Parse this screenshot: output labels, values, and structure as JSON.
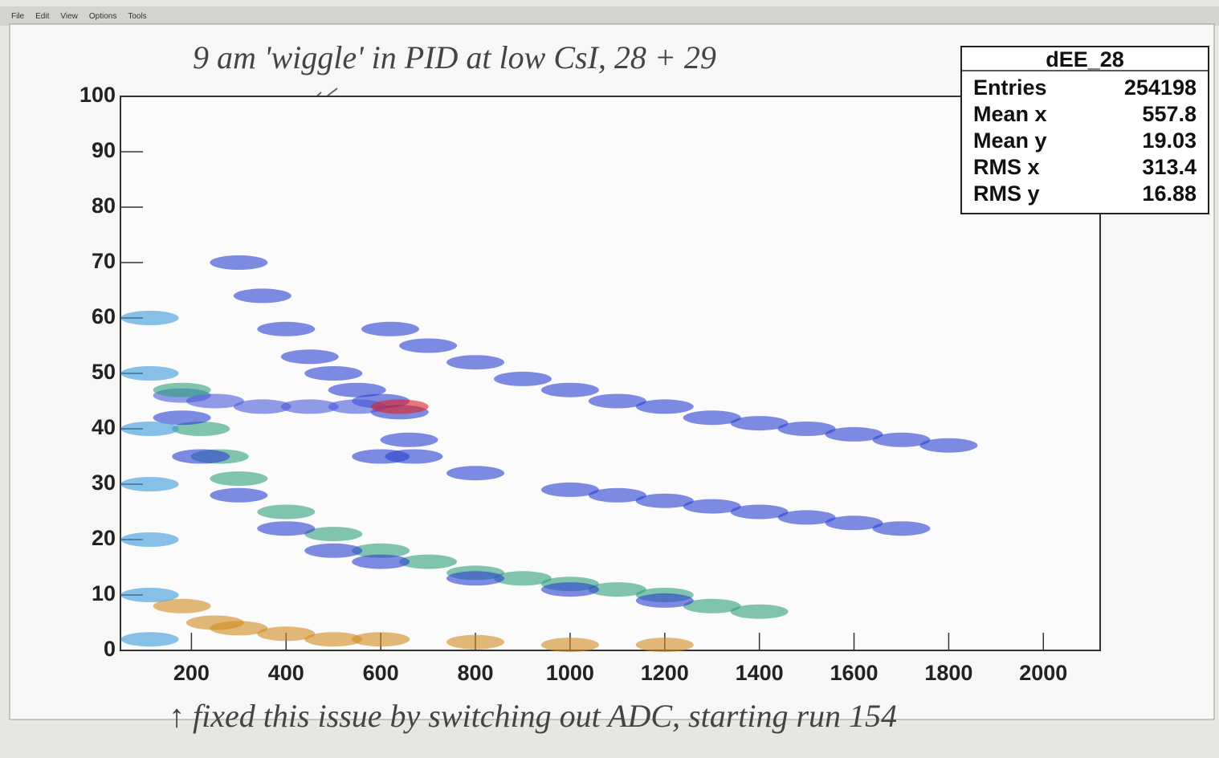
{
  "menu": [
    "File",
    "Edit",
    "View",
    "Options",
    "Tools"
  ],
  "annotations": [
    "9 am  'wiggle'  in PID at low CsI,   28 + 29",
    "↑ fixed this issue by switching out ADC, starting run 154"
  ],
  "stats": {
    "title": "dEE_28",
    "rows": [
      {
        "label": "Entries",
        "value": 254198
      },
      {
        "label": "Mean x",
        "value": 557.8
      },
      {
        "label": "Mean y",
        "value": 19.03
      },
      {
        "label": "RMS x",
        "value": 313.4
      },
      {
        "label": "RMS y",
        "value": 16.88
      }
    ]
  },
  "chart_data": {
    "type": "hist2d",
    "xlim": [
      50,
      2120
    ],
    "ylim": [
      0,
      100
    ],
    "xticks": [
      200,
      400,
      600,
      800,
      1000,
      1200,
      1400,
      1600,
      1800,
      2000
    ],
    "yticks": [
      0,
      10,
      20,
      30,
      40,
      50,
      60,
      70,
      80,
      90,
      100
    ],
    "series": [
      {
        "color": "#2a3fd0",
        "x": [
          620,
          700,
          800,
          900,
          1000,
          1100,
          1200,
          1300,
          1400,
          1500,
          1600,
          1700,
          1800
        ],
        "y": [
          58,
          55,
          52,
          49,
          47,
          45,
          44,
          42,
          41,
          40,
          39,
          38,
          37
        ]
      },
      {
        "color": "#2a3fd0",
        "x": [
          600,
          800,
          1000,
          1100,
          1200,
          1300,
          1400,
          1500,
          1600,
          1700
        ],
        "y": [
          35,
          32,
          29,
          28,
          27,
          26,
          25,
          24,
          23,
          22
        ]
      },
      {
        "color": "#2a3fd0",
        "x": [
          300,
          350,
          400,
          450,
          500,
          550,
          600,
          640,
          660,
          670
        ],
        "y": [
          70,
          64,
          58,
          53,
          50,
          47,
          45,
          43,
          38,
          35
        ]
      },
      {
        "color": "#4a5ad8",
        "x": [
          180,
          250,
          350,
          450,
          550
        ],
        "y": [
          46,
          45,
          44,
          44,
          44
        ]
      },
      {
        "color": "#2fa07a",
        "x": [
          180,
          220,
          260,
          300,
          400,
          500,
          600,
          700,
          800,
          900,
          1000,
          1100,
          1200,
          1300,
          1400
        ],
        "y": [
          47,
          40,
          35,
          31,
          25,
          21,
          18,
          16,
          14,
          13,
          12,
          11,
          10,
          8,
          7
        ]
      },
      {
        "color": "#2a3fd0",
        "x": [
          180,
          220,
          300,
          400,
          500,
          600,
          800,
          1000,
          1200
        ],
        "y": [
          42,
          35,
          28,
          22,
          18,
          16,
          13,
          11,
          9
        ]
      },
      {
        "color": "#d08a20",
        "x": [
          180,
          250,
          300,
          400,
          500,
          600,
          800,
          1000,
          1200
        ],
        "y": [
          8,
          5,
          4,
          3,
          2,
          2,
          1.5,
          1,
          1
        ]
      },
      {
        "color": "#3a9ad8",
        "x": [
          112,
          112,
          112,
          112,
          112,
          112,
          112
        ],
        "y": [
          2,
          10,
          20,
          30,
          40,
          50,
          60
        ]
      },
      {
        "color": "#e02020",
        "x": [
          640
        ],
        "y": [
          44
        ]
      }
    ]
  }
}
